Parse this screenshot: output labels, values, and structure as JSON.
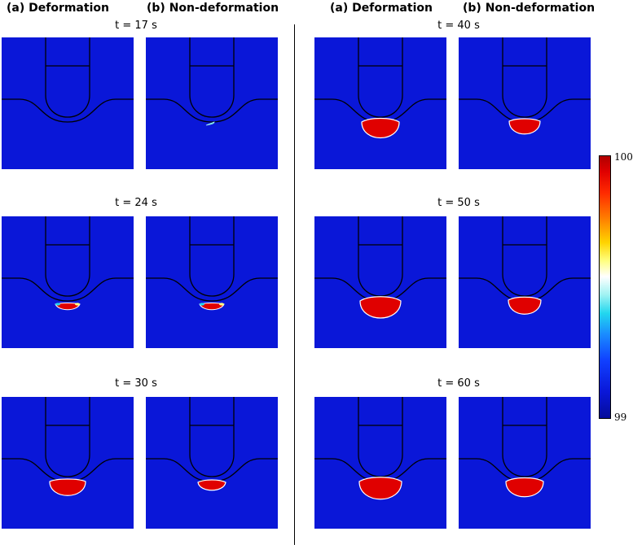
{
  "headers": [
    {
      "id": "col1",
      "text": "(a) Deformation"
    },
    {
      "id": "col2",
      "text": "(b) Non-deformation"
    },
    {
      "id": "col3",
      "text": "(a) Deformation"
    },
    {
      "id": "col4",
      "text": "(b) Non-deformation"
    }
  ],
  "times": {
    "t17": "t = 17 s",
    "t24": "t = 24 s",
    "t30": "t = 30 s",
    "t40": "t = 40 s",
    "t50": "t = 50 s",
    "t60": "t = 60 s"
  },
  "colorbar": {
    "max": "100",
    "min": "99",
    "colors": {
      "background": "#0a17d8",
      "high": "#e00000",
      "mid": "#ffff80",
      "low": "#22d7ee"
    }
  }
}
